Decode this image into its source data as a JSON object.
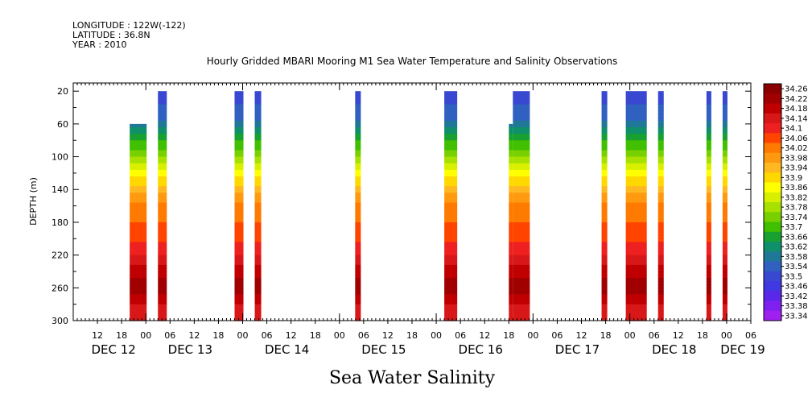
{
  "header": {
    "longitude": "LONGITUDE : 122W(-122)",
    "latitude": "LATITUDE : 36.8N",
    "year": "YEAR : 2010"
  },
  "chart_data": {
    "type": "heatmap",
    "title": "Hourly Gridded MBARI Mooring M1 Sea Water Temperature and Salinity Observations",
    "xlabel": "Sea Water Salinity",
    "ylabel": "DEPTH (m)",
    "x_unit": "hours since DEC 12 00:00 (2010)",
    "xlim": [
      6,
      174
    ],
    "ylim": [
      300,
      10
    ],
    "y_ticks": [
      20,
      60,
      100,
      140,
      180,
      220,
      260,
      300
    ],
    "x_hour_ticks": [
      {
        "h": 12,
        "label": "12"
      },
      {
        "h": 18,
        "label": "18"
      },
      {
        "h": 24,
        "label": "00"
      },
      {
        "h": 30,
        "label": "06"
      },
      {
        "h": 36,
        "label": "12"
      },
      {
        "h": 42,
        "label": "18"
      },
      {
        "h": 48,
        "label": "00"
      },
      {
        "h": 54,
        "label": "06"
      },
      {
        "h": 60,
        "label": "12"
      },
      {
        "h": 66,
        "label": "18"
      },
      {
        "h": 72,
        "label": "00"
      },
      {
        "h": 78,
        "label": "06"
      },
      {
        "h": 84,
        "label": "12"
      },
      {
        "h": 90,
        "label": "18"
      },
      {
        "h": 96,
        "label": "00"
      },
      {
        "h": 102,
        "label": "06"
      },
      {
        "h": 108,
        "label": "12"
      },
      {
        "h": 114,
        "label": "18"
      },
      {
        "h": 120,
        "label": "00"
      },
      {
        "h": 126,
        "label": "06"
      },
      {
        "h": 132,
        "label": "12"
      },
      {
        "h": 138,
        "label": "18"
      },
      {
        "h": 144,
        "label": "00"
      },
      {
        "h": 150,
        "label": "06"
      },
      {
        "h": 156,
        "label": "12"
      },
      {
        "h": 162,
        "label": "18"
      },
      {
        "h": 168,
        "label": "00"
      },
      {
        "h": 174,
        "label": "06"
      }
    ],
    "x_date_labels": [
      {
        "h": 16,
        "label": "DEC 12"
      },
      {
        "h": 35,
        "label": "DEC 13"
      },
      {
        "h": 59,
        "label": "DEC 14"
      },
      {
        "h": 83,
        "label": "DEC 15"
      },
      {
        "h": 107,
        "label": "DEC 16"
      },
      {
        "h": 131,
        "label": "DEC 17"
      },
      {
        "h": 155,
        "label": "DEC 18"
      },
      {
        "h": 172,
        "label": "DEC 19"
      }
    ],
    "colorbar_labels": [
      "34.26",
      "34.22",
      "34.18",
      "34.14",
      "34.1",
      "34.06",
      "34.02",
      "33.98",
      "33.94",
      "33.9",
      "33.86",
      "33.82",
      "33.78",
      "33.74",
      "33.7",
      "33.66",
      "33.62",
      "33.58",
      "33.54",
      "33.5",
      "33.46",
      "33.42",
      "33.38",
      "33.34"
    ],
    "colorbar_colors": [
      "#8b0000",
      "#a00000",
      "#c00000",
      "#d81818",
      "#ee2020",
      "#ff4400",
      "#ff7a00",
      "#ff9a10",
      "#ffb820",
      "#ffd800",
      "#ffff00",
      "#d8f000",
      "#a8e000",
      "#78d000",
      "#40c000",
      "#18a030",
      "#10906a",
      "#207898",
      "#3060c0",
      "#3848d0",
      "#4038e0",
      "#5a28e8",
      "#8020f0",
      "#a020f0"
    ],
    "salinity_profile": [
      {
        "depth": 20,
        "sal": 33.5
      },
      {
        "depth": 50,
        "sal": 33.54
      },
      {
        "depth": 70,
        "sal": 33.62
      },
      {
        "depth": 90,
        "sal": 33.72
      },
      {
        "depth": 110,
        "sal": 33.82
      },
      {
        "depth": 130,
        "sal": 33.9
      },
      {
        "depth": 145,
        "sal": 33.96
      },
      {
        "depth": 160,
        "sal": 34.02
      },
      {
        "depth": 190,
        "sal": 34.05
      },
      {
        "depth": 215,
        "sal": 34.1
      },
      {
        "depth": 240,
        "sal": 34.18
      },
      {
        "depth": 260,
        "sal": 34.22
      },
      {
        "depth": 280,
        "sal": 34.16
      },
      {
        "depth": 300,
        "sal": 34.14
      }
    ],
    "segments": [
      {
        "start": 20.0,
        "end": 24.2,
        "top": 60
      },
      {
        "start": 27.0,
        "end": 29.2,
        "top": 20
      },
      {
        "start": 46.0,
        "end": 48.2,
        "top": 20
      },
      {
        "start": 51.0,
        "end": 52.6,
        "top": 20
      },
      {
        "start": 75.9,
        "end": 77.3,
        "top": 20
      },
      {
        "start": 98.0,
        "end": 101.2,
        "top": 20
      },
      {
        "start": 114.0,
        "end": 115.0,
        "top": 60
      },
      {
        "start": 115.0,
        "end": 119.2,
        "top": 20
      },
      {
        "start": 137.0,
        "end": 138.4,
        "top": 20
      },
      {
        "start": 143.0,
        "end": 148.2,
        "top": 20
      },
      {
        "start": 151.0,
        "end": 152.4,
        "top": 20
      },
      {
        "start": 163.0,
        "end": 164.2,
        "top": 20
      },
      {
        "start": 167.0,
        "end": 168.2,
        "top": 20
      }
    ]
  }
}
